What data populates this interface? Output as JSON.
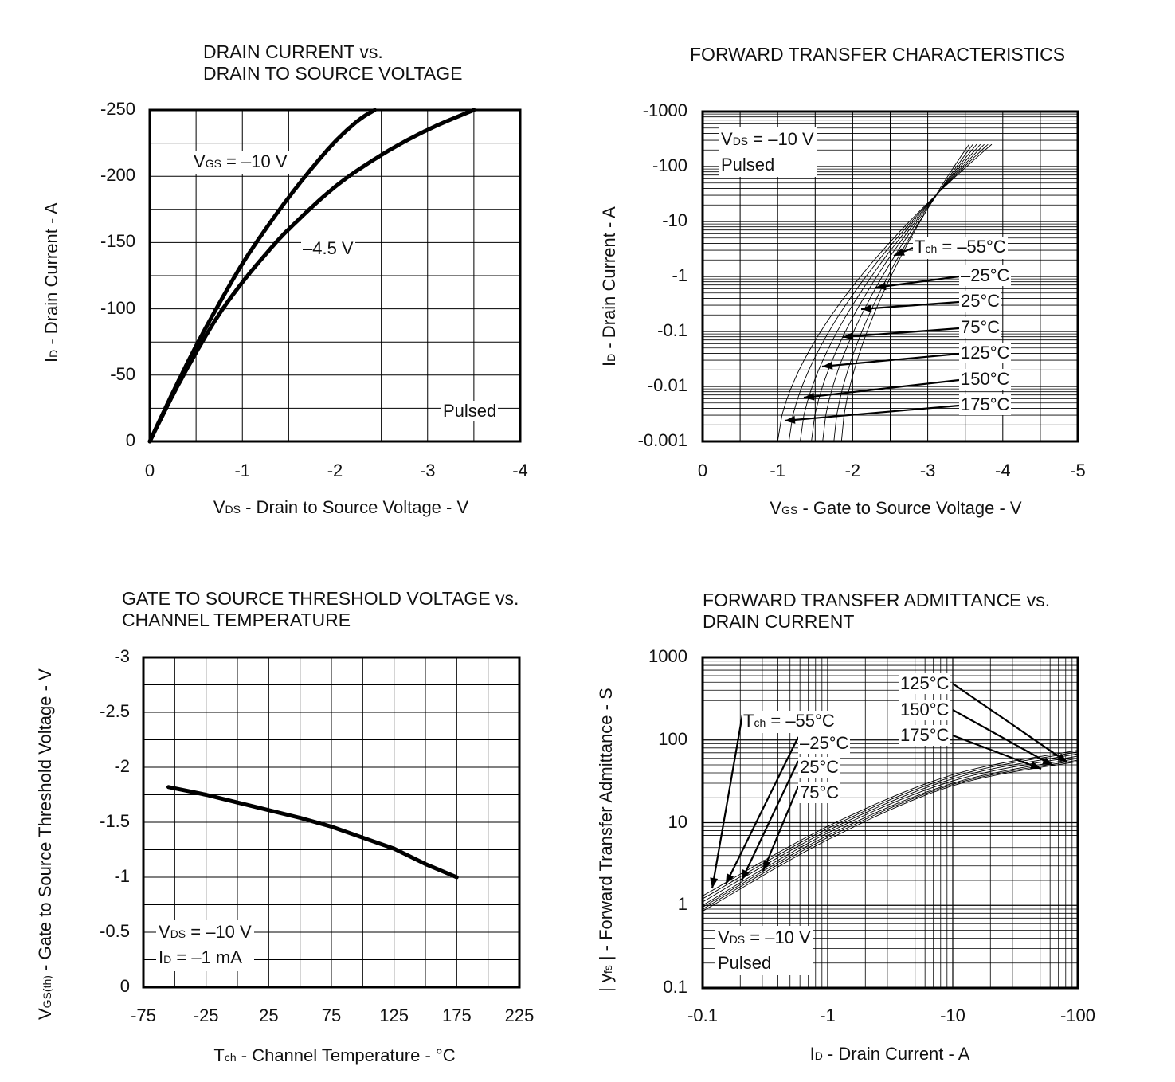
{
  "chart_data": [
    {
      "type": "line",
      "title": [
        "DRAIN CURRENT vs.",
        "DRAIN TO SOURCE VOLTAGE"
      ],
      "xlabel": {
        "sym": "V",
        "sub": "DS",
        "text": " - Drain to Source Voltage - V"
      },
      "ylabel": {
        "sym": "I",
        "sub": "D",
        "text": " - Drain Current - A"
      },
      "x_ticks": [
        "0",
        "-1",
        "-2",
        "-3",
        "-4"
      ],
      "y_ticks": [
        "0",
        "-50",
        "-100",
        "-150",
        "-200",
        "-250"
      ],
      "xlim": [
        0,
        -4
      ],
      "ylim": [
        0,
        -250
      ],
      "annotations": {
        "vgs": {
          "sym": "V",
          "sub": "GS",
          "text": " = –10 V"
        },
        "v45": "–4.5 V",
        "pulsed": "Pulsed"
      },
      "series": [
        {
          "name": "VGS = –10 V",
          "x": [
            0,
            -0.25,
            -0.5,
            -0.75,
            -1.0,
            -1.25,
            -1.5,
            -1.75,
            -2.0,
            -2.25,
            -2.43
          ],
          "y": [
            0,
            -37,
            -72,
            -104,
            -134,
            -160,
            -184,
            -206,
            -226,
            -242,
            -250
          ]
        },
        {
          "name": "–4.5 V",
          "x": [
            0,
            -0.25,
            -0.5,
            -0.75,
            -1.0,
            -1.25,
            -1.5,
            -2.0,
            -2.5,
            -3.0,
            -3.5
          ],
          "y": [
            0,
            -35,
            -67,
            -96,
            -120,
            -141,
            -160,
            -192,
            -216,
            -235,
            -250
          ]
        }
      ]
    },
    {
      "type": "line",
      "title": [
        "FORWARD TRANSFER CHARACTERISTICS"
      ],
      "xlabel": {
        "sym": "V",
        "sub": "GS",
        "text": " - Gate to Source Voltage - V"
      },
      "ylabel": {
        "sym": "I",
        "sub": "D",
        "text": " - Drain Current - A"
      },
      "x_ticks": [
        "0",
        "-1",
        "-2",
        "-3",
        "-4",
        "-5"
      ],
      "y_ticks": [
        "-0.001",
        "-0.01",
        "-0.1",
        "-1",
        "-10",
        "-100",
        "-1000"
      ],
      "xlim": [
        0,
        -5
      ],
      "ylim": [
        -0.001,
        -1000
      ],
      "yscale": "log",
      "conditions": [
        {
          "sym": "V",
          "sub": "DS",
          "text": " = –10 V"
        },
        "Pulsed"
      ],
      "tch_prefix": {
        "sym": "T",
        "sub": "ch",
        "text": " = "
      },
      "temperatures": [
        "–55°C",
        "–25°C",
        "25°C",
        "75°C",
        "125°C",
        "150°C",
        "175°C"
      ],
      "thresholds": [
        -1.85,
        -1.75,
        -1.6,
        -1.45,
        -1.3,
        -1.15,
        -1.0
      ],
      "saturation": {
        "x": -3.65,
        "y": -250
      }
    },
    {
      "type": "line",
      "title": [
        "GATE TO SOURCE THRESHOLD VOLTAGE vs.",
        "CHANNEL TEMPERATURE"
      ],
      "xlabel": {
        "sym": "T",
        "sub": "ch",
        "text": " - Channel Temperature - °C"
      },
      "ylabel": {
        "sym": "V",
        "sub": "GS(th)",
        "text": " - Gate to Source Threshold Voltage - V"
      },
      "x_ticks": [
        "-75",
        "-25",
        "25",
        "75",
        "125",
        "175",
        "225"
      ],
      "y_ticks": [
        "0",
        "-0.5",
        "-1",
        "-1.5",
        "-2",
        "-2.5",
        "-3"
      ],
      "xlim": [
        -75,
        225
      ],
      "ylim": [
        0,
        -3
      ],
      "conditions": [
        {
          "sym": "V",
          "sub": "DS",
          "text": " = –10 V"
        },
        {
          "sym": "I",
          "sub": "D",
          "text": " = –1 mA"
        }
      ],
      "series": [
        {
          "name": "VGS(th)",
          "x": [
            -55,
            -25,
            0,
            25,
            50,
            75,
            100,
            125,
            150,
            175
          ],
          "y": [
            -1.82,
            -1.75,
            -1.68,
            -1.61,
            -1.54,
            -1.46,
            -1.36,
            -1.26,
            -1.12,
            -1.0
          ]
        }
      ]
    },
    {
      "type": "line",
      "title": [
        "FORWARD TRANSFER ADMITTANCE vs.",
        "DRAIN CURRENT"
      ],
      "xlabel": {
        "sym": "I",
        "sub": "D",
        "text": " - Drain Current - A"
      },
      "ylabel": {
        "sym": "| y",
        "sub": "fs",
        "text": " | - Forward Transfer Admittance - S"
      },
      "x_ticks": [
        "-0.1",
        "-1",
        "-10",
        "-100"
      ],
      "y_ticks": [
        "0.1",
        "1",
        "10",
        "100",
        "1000"
      ],
      "xlim": [
        -0.1,
        -100
      ],
      "ylim": [
        0.1,
        1000
      ],
      "xscale": "log",
      "yscale": "log",
      "conditions": [
        {
          "sym": "V",
          "sub": "DS",
          "text": " = –10 V"
        },
        "Pulsed"
      ],
      "tch_prefix": {
        "sym": "T",
        "sub": "ch",
        "text": " = "
      },
      "temperatures_low": [
        "–55°C",
        "–25°C",
        "25°C",
        "75°C"
      ],
      "temperatures_high": [
        "125°C",
        "150°C",
        "175°C"
      ],
      "series": [
        {
          "name": "–55°C",
          "x": [
            -0.1,
            -1,
            -10,
            -100
          ],
          "y": [
            1.3,
            9,
            38,
            75
          ]
        },
        {
          "name": "–25°C",
          "x": [
            -0.1,
            -1,
            -10,
            -100
          ],
          "y": [
            1.2,
            8.5,
            36,
            72
          ]
        },
        {
          "name": "25°C",
          "x": [
            -0.1,
            -1,
            -10,
            -100
          ],
          "y": [
            1.1,
            8,
            34,
            68
          ]
        },
        {
          "name": "75°C",
          "x": [
            -0.1,
            -1,
            -10,
            -100
          ],
          "y": [
            1.0,
            7.5,
            32,
            64
          ]
        },
        {
          "name": "125°C",
          "x": [
            -0.1,
            -1,
            -10,
            -100
          ],
          "y": [
            0.95,
            7,
            30,
            60
          ]
        },
        {
          "name": "150°C",
          "x": [
            -0.1,
            -1,
            -10,
            -100
          ],
          "y": [
            0.9,
            6.6,
            29,
            57
          ]
        },
        {
          "name": "175°C",
          "x": [
            -0.1,
            -1,
            -10,
            -100
          ],
          "y": [
            0.85,
            6.2,
            28,
            55
          ]
        }
      ]
    }
  ]
}
